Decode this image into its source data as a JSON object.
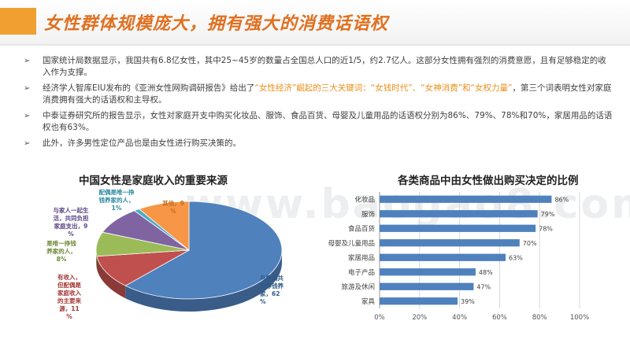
{
  "page": {
    "title": "女性群体规模庞大，拥有强大的消费话语权",
    "watermark": "www.baogao8.com"
  },
  "bullets": [
    {
      "parts": [
        {
          "text": "国家统计局数据显示，我国共有6.8亿女性，其中25~45岁的数量占全国总人口的近1/5，约2.7亿人。这部分女性拥有强烈的消费意愿，且有足够稳定的收入作为支撑。",
          "hl": false
        }
      ]
    },
    {
      "parts": [
        {
          "text": "经济学人智库EIU发布的《亚洲女性网购调研报告》给出了",
          "hl": false
        },
        {
          "text": "“女性经济”崛起的三大关键词：“女钱时代”、“女神消费”和“女权力量”",
          "hl": true
        },
        {
          "text": "，第三个词表明女性对家庭消费拥有强大的话语权和主导权。",
          "hl": false
        }
      ]
    },
    {
      "parts": [
        {
          "text": "中泰证券研究所的报告显示，女性对家庭开支中购买化妆品、服饰、食品百货、母婴及儿童用品的话语权分别为86%、79%、78%和70%，家居用品的话语权也有63%。",
          "hl": false
        }
      ]
    },
    {
      "parts": [
        {
          "text": "此外，许多男性定位产品也是由女性进行购买决策的。",
          "hl": false
        }
      ]
    }
  ],
  "chart_data": [
    {
      "type": "pie",
      "title": "中国女性是家庭收入的重要来源",
      "slices": [
        {
          "label": "与配偶共同挣钱养家，",
          "value": 62,
          "value_text": "62%",
          "color": "#4f81bd"
        },
        {
          "label": "有收入，但配偶是家庭收入的主要来源，",
          "value": 11,
          "value_text": "11%",
          "color": "#c0504d"
        },
        {
          "label": "是唯一挣钱养家的人，",
          "value": 8,
          "value_text": "8%",
          "color": "#9bbb59"
        },
        {
          "label": "与家人一起生活，共同负担家庭支出，",
          "value": 9,
          "value_text": "9%",
          "color": "#8064a2"
        },
        {
          "label": "配偶是唯一挣钱养家的人，",
          "value": 1,
          "value_text": "1%",
          "color": "#4bacc6"
        },
        {
          "label": "其他，",
          "value": 9,
          "value_text": "9%",
          "color": "#f79646"
        }
      ]
    },
    {
      "type": "bar",
      "orientation": "horizontal",
      "title": "各类商品中由女性做出购买决定的比例",
      "categories": [
        "化妆品",
        "服饰",
        "食品百货",
        "母婴及儿童用品",
        "家居用品",
        "电子产品",
        "旅游及休闲",
        "家具"
      ],
      "values": [
        86,
        79,
        78,
        70,
        63,
        48,
        47,
        39
      ],
      "value_labels": [
        "86%",
        "79%",
        "78%",
        "70%",
        "63%",
        "48%",
        "47%",
        "39%"
      ],
      "xlim": [
        0,
        100
      ],
      "xticks": [
        "0%",
        "20%",
        "40%",
        "60%",
        "80%",
        "100%"
      ],
      "grid": true,
      "bar_color": "#4f81bd"
    }
  ]
}
